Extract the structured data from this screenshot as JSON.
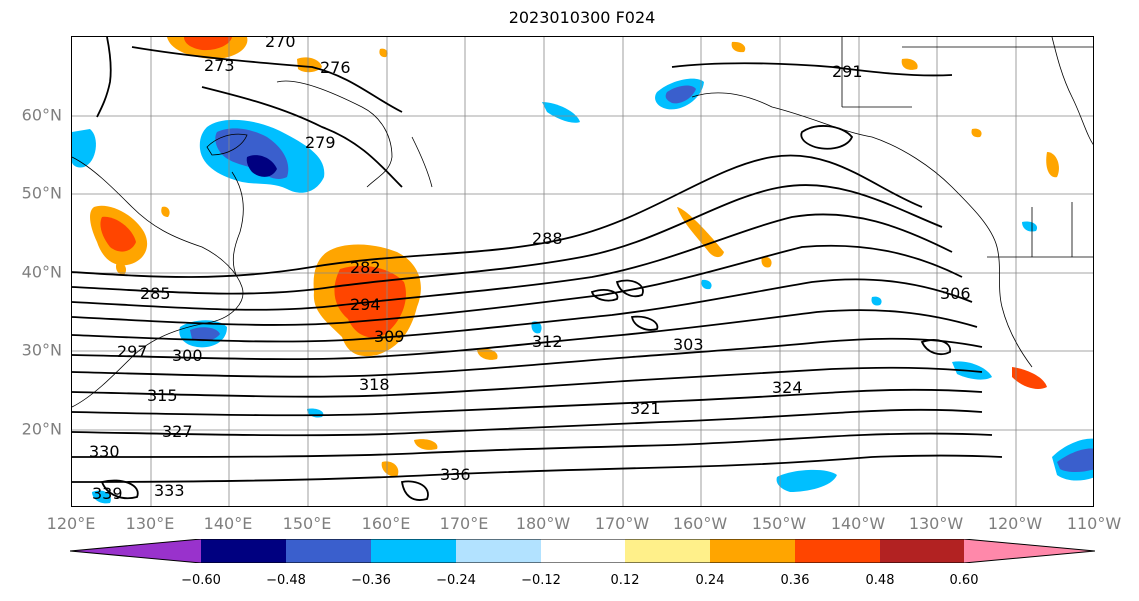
{
  "title": "2023010300 F024",
  "lat_labels": [
    "60°N",
    "50°N",
    "40°N",
    "30°N",
    "20°N"
  ],
  "lon_labels": [
    "120°E",
    "130°E",
    "140°E",
    "150°E",
    "160°E",
    "170°E",
    "180°W",
    "170°W",
    "160°W",
    "150°W",
    "140°W",
    "130°W",
    "120°W",
    "110°W"
  ],
  "colorbar": {
    "ticks": [
      "−0.60",
      "−0.48",
      "−0.36",
      "−0.24",
      "−0.12",
      "0.12",
      "0.24",
      "0.36",
      "0.48",
      "0.60"
    ],
    "colors": [
      "#9932cc",
      "#000080",
      "#3a5fcd",
      "#00bfff",
      "#b2e2ff",
      "#ffffff",
      "#fff08a",
      "#ffa500",
      "#ff4500",
      "#b22222",
      "#ff88aa"
    ]
  },
  "contour_labels": [
    "270",
    "273",
    "276",
    "279",
    "282",
    "285",
    "288",
    "291",
    "294",
    "297",
    "300",
    "303",
    "306",
    "309",
    "312",
    "315",
    "318",
    "321",
    "324",
    "327",
    "330",
    "333",
    "336",
    "339"
  ]
}
